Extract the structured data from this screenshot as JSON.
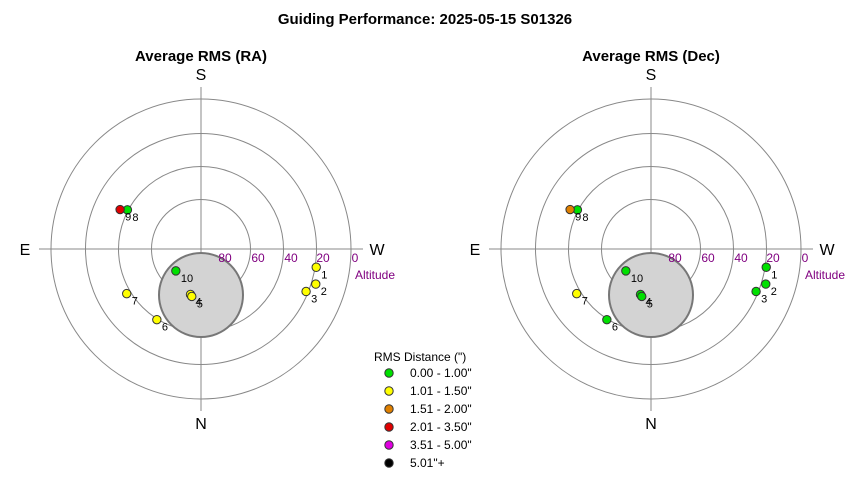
{
  "title": "Guiding Performance: 2025-05-15 S01326",
  "legend": {
    "title": "RMS Distance (\")",
    "items": [
      {
        "label": "0.00 - 1.00\"",
        "color": "#00e000"
      },
      {
        "label": "1.01 - 1.50\"",
        "color": "#ffff00"
      },
      {
        "label": "1.51 - 2.00\"",
        "color": "#e08000"
      },
      {
        "label": "2.01 - 3.50\"",
        "color": "#e00000"
      },
      {
        "label": "3.51 - 5.00\"",
        "color": "#e000e0"
      },
      {
        "label": "5.01\"+",
        "color": "#000000"
      }
    ]
  },
  "chart_data": [
    {
      "type": "scatter",
      "subtype": "polar-sky",
      "title": "Average RMS (RA)",
      "directions": {
        "top": "S",
        "bottom": "N",
        "left": "E",
        "right": "W"
      },
      "altitude_label": "Altitude",
      "altitude_ticks": [
        80,
        60,
        40,
        20,
        0
      ],
      "points": [
        {
          "label": "1",
          "az": 261,
          "alt": 20,
          "color": "#ffff00"
        },
        {
          "label": "2",
          "az": 253,
          "alt": 18,
          "color": "#ffff00"
        },
        {
          "label": "3",
          "az": 248,
          "alt": 22,
          "color": "#ffff00"
        },
        {
          "label": "4",
          "az": 167,
          "alt": 62,
          "color": "#ffff00"
        },
        {
          "label": "5",
          "az": 169,
          "alt": 61,
          "color": "#ffff00"
        },
        {
          "label": "6",
          "az": 148,
          "alt": 40,
          "color": "#ffff00"
        },
        {
          "label": "7",
          "az": 121,
          "alt": 38,
          "color": "#ffff00"
        },
        {
          "label": "8",
          "az": 62,
          "alt": 40,
          "color": "#00e000"
        },
        {
          "label": "9",
          "az": 64,
          "alt": 36,
          "color": "#e00000"
        },
        {
          "label": "10",
          "az": 131,
          "alt": 70,
          "color": "#00e000"
        }
      ]
    },
    {
      "type": "scatter",
      "subtype": "polar-sky",
      "title": "Average RMS (Dec)",
      "directions": {
        "top": "S",
        "bottom": "N",
        "left": "E",
        "right": "W"
      },
      "altitude_label": "Altitude",
      "altitude_ticks": [
        80,
        60,
        40,
        20,
        0
      ],
      "points": [
        {
          "label": "1",
          "az": 261,
          "alt": 20,
          "color": "#00e000"
        },
        {
          "label": "2",
          "az": 253,
          "alt": 18,
          "color": "#00e000"
        },
        {
          "label": "3",
          "az": 248,
          "alt": 22,
          "color": "#00e000"
        },
        {
          "label": "4",
          "az": 167,
          "alt": 62,
          "color": "#00e000"
        },
        {
          "label": "5",
          "az": 169,
          "alt": 61,
          "color": "#00e000"
        },
        {
          "label": "6",
          "az": 148,
          "alt": 40,
          "color": "#00e000"
        },
        {
          "label": "7",
          "az": 121,
          "alt": 38,
          "color": "#ffff00"
        },
        {
          "label": "8",
          "az": 62,
          "alt": 40,
          "color": "#00e000"
        },
        {
          "label": "9",
          "az": 64,
          "alt": 36,
          "color": "#e08000"
        },
        {
          "label": "10",
          "az": 131,
          "alt": 70,
          "color": "#00e000"
        }
      ]
    }
  ]
}
